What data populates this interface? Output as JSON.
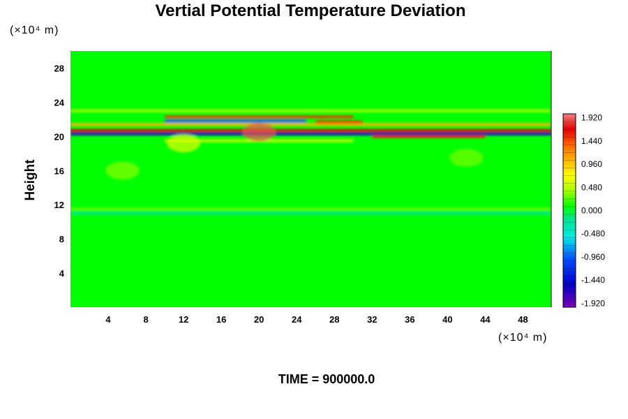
{
  "chart_data": {
    "type": "heatmap",
    "title": "Vertial Potential Temperature Deviation",
    "xlabel": "",
    "ylabel": "Height",
    "x_unit": "(×10⁴ m)",
    "y_unit": "(×10⁴ m)",
    "xlim": [
      0,
      51
    ],
    "ylim": [
      0,
      30
    ],
    "x_ticks": [
      "4",
      "8",
      "12",
      "16",
      "20",
      "24",
      "28",
      "32",
      "36",
      "40",
      "44",
      "48"
    ],
    "y_ticks": [
      "4",
      "8",
      "12",
      "16",
      "20",
      "24",
      "28"
    ],
    "colorbar": {
      "min": -2.0,
      "max": 2.0,
      "labels": [
        "1.920",
        "1.440",
        "0.960",
        "0.480",
        "0.000",
        "-0.480",
        "-0.960",
        "-1.440",
        "-1.920"
      ]
    },
    "background_value": 0.0,
    "bands": [
      {
        "y": 20.7,
        "x0": 0,
        "x1": 51,
        "value": 1.7
      },
      {
        "y": 20.3,
        "x0": 0,
        "x1": 51,
        "value": -1.6
      },
      {
        "y": 21.4,
        "x0": 0,
        "x1": 51,
        "value": 1.0
      },
      {
        "y": 22.3,
        "x0": 10,
        "x1": 30,
        "value": 1.5
      },
      {
        "y": 21.8,
        "x0": 10,
        "x1": 25,
        "value": -1.0
      },
      {
        "y": 20.0,
        "x0": 32,
        "x1": 44,
        "value": 1.6
      },
      {
        "y": 21.7,
        "x0": 26,
        "x1": 31,
        "value": 1.5
      },
      {
        "y": 19.5,
        "x0": 10,
        "x1": 30,
        "value": 0.5
      },
      {
        "y": 23.0,
        "x0": 0,
        "x1": 51,
        "value": 0.4
      },
      {
        "y": 11.5,
        "x0": 0,
        "x1": 51,
        "value": 0.25
      },
      {
        "y": 11.0,
        "x0": 0,
        "x1": 51,
        "value": -0.2
      }
    ],
    "blobs": [
      {
        "x": 5.5,
        "y": 16,
        "value": 0.35
      },
      {
        "x": 42,
        "y": 17.5,
        "value": 0.3
      },
      {
        "x": 12,
        "y": 19.2,
        "value": 0.6
      },
      {
        "x": 20,
        "y": 20.5,
        "value": 1.9
      }
    ]
  },
  "footer": {
    "time_label": "TIME = 900000.0"
  }
}
